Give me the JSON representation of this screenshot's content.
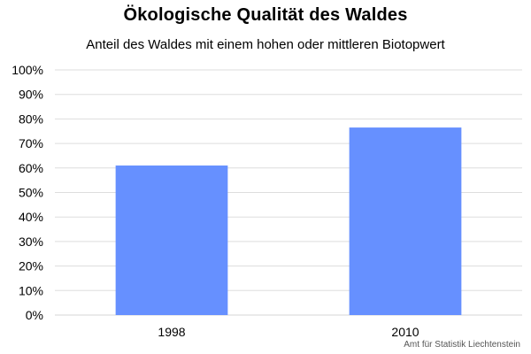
{
  "chart_data": {
    "type": "bar",
    "title": "Ökologische Qualität des Waldes",
    "subtitle": "Anteil des Waldes mit einem hohen oder mittleren Biotopwert",
    "categories": [
      "1998",
      "2010"
    ],
    "values": [
      0.61,
      0.765
    ],
    "ylim": [
      0,
      1
    ],
    "yticks": [
      0,
      0.1,
      0.2,
      0.3,
      0.4,
      0.5,
      0.6,
      0.7,
      0.8,
      0.9,
      1.0
    ],
    "ytick_labels": [
      "0%",
      "10%",
      "20%",
      "30%",
      "40%",
      "50%",
      "60%",
      "70%",
      "80%",
      "90%",
      "100%"
    ],
    "grid": true,
    "bar_color": "#6690ff",
    "grid_color": "#dddddd",
    "source": "Amt für Statistik Liechtenstein"
  }
}
